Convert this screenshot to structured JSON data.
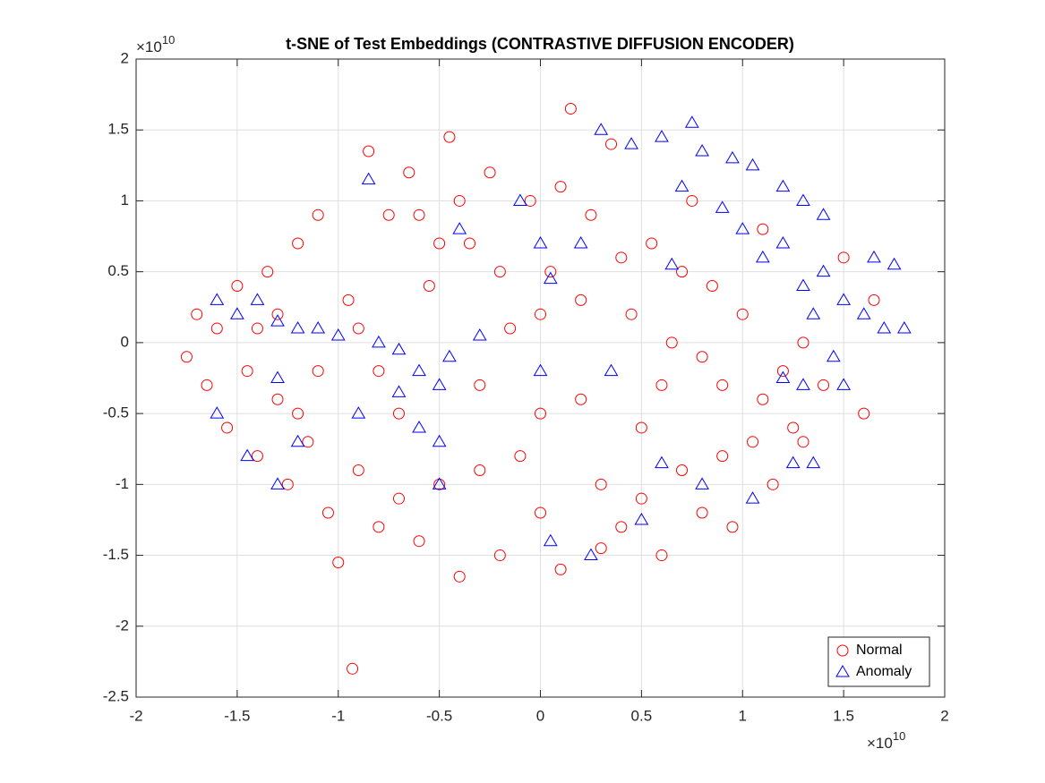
{
  "chart_data": {
    "type": "scatter",
    "title": "t-SNE of Test Embeddings (CONTRASTIVE DIFFUSION ENCODER)",
    "x_scale_base": "×10",
    "x_scale_exponent": "10",
    "y_scale_base": "×10",
    "y_scale_exponent": "10",
    "xlim": [
      -2,
      2
    ],
    "xticks": [
      -2,
      -1.5,
      -1,
      -0.5,
      0,
      0.5,
      1,
      1.5,
      2
    ],
    "ylim": [
      -2.5,
      2
    ],
    "yticks": [
      -2.5,
      -2,
      -1.5,
      -1,
      -0.5,
      0,
      0.5,
      1,
      1.5,
      2
    ],
    "grid": true,
    "legend": "lower right",
    "series": [
      {
        "name": "Normal",
        "color": "#ff0000",
        "marker": "circle",
        "x": [
          -1.75,
          -1.7,
          -1.65,
          -1.6,
          -1.55,
          -1.5,
          -1.45,
          -1.4,
          -1.35,
          -1.3,
          -1.25,
          -1.2,
          -1.15,
          -1.1,
          -1.05,
          -1.0,
          -0.93,
          -0.95,
          -0.9,
          -0.85,
          -0.8,
          -0.75,
          -0.7,
          -0.65,
          -0.6,
          -0.55,
          -0.5,
          -0.45,
          -0.4,
          -0.35,
          -0.3,
          -0.25,
          -0.2,
          -0.15,
          -0.1,
          -0.05,
          0,
          0.05,
          0.1,
          0.15,
          0.2,
          0.25,
          0.3,
          0.35,
          0.4,
          0.45,
          0.5,
          0.55,
          0.6,
          0.65,
          0.7,
          0.75,
          0.8,
          0.85,
          0.9,
          0.95,
          1.0,
          1.05,
          1.1,
          1.15,
          1.2,
          1.25,
          1.3,
          1.4,
          1.5,
          1.6,
          1.65,
          -1.3,
          -1.1,
          -0.6,
          -0.3,
          0.0,
          0.4,
          0.6,
          0.9,
          -0.9,
          -0.7,
          0.1,
          0.3,
          -1.4,
          -0.5,
          0.2,
          0.7,
          1.1,
          -0.2,
          -0.8,
          0.5,
          -1.2,
          0.8,
          -0.4,
          0.0,
          1.3
        ],
        "values": [
          -0.1,
          0.2,
          -0.3,
          0.1,
          -0.6,
          0.4,
          -0.2,
          -0.8,
          0.5,
          -0.4,
          -1.0,
          0.7,
          -0.7,
          0.9,
          -1.2,
          -1.55,
          -2.3,
          0.3,
          -0.9,
          1.35,
          -1.3,
          0.9,
          -0.5,
          1.2,
          -1.4,
          0.4,
          -1.0,
          1.45,
          -1.65,
          0.7,
          -0.3,
          1.2,
          -1.5,
          0.1,
          -0.8,
          1.0,
          -1.2,
          0.5,
          -1.6,
          1.65,
          -0.4,
          0.9,
          -1.0,
          1.4,
          -1.3,
          0.2,
          -0.6,
          0.7,
          -1.5,
          0.0,
          -0.9,
          1.0,
          -1.2,
          0.4,
          -0.3,
          -1.3,
          0.2,
          -0.7,
          0.8,
          -1.0,
          -0.2,
          -0.6,
          0.0,
          -0.3,
          0.6,
          -0.5,
          0.3,
          0.2,
          -0.2,
          0.9,
          -0.9,
          0.2,
          0.6,
          -0.3,
          -0.8,
          0.1,
          -1.1,
          1.1,
          -1.45,
          0.1,
          0.7,
          0.3,
          0.5,
          -0.4,
          0.5,
          -0.2,
          -1.1,
          -0.5,
          -0.1,
          1.0,
          -0.5,
          -0.7
        ]
      },
      {
        "name": "Anomaly",
        "color": "#0000ff",
        "marker": "triangle",
        "x": [
          0.3,
          0.45,
          0.6,
          0.75,
          0.8,
          0.95,
          1.05,
          1.2,
          1.3,
          1.4,
          0.7,
          0.9,
          1.0,
          1.1,
          1.2,
          1.3,
          1.4,
          1.5,
          1.6,
          1.7,
          1.8,
          1.65,
          1.75,
          1.35,
          1.45,
          1.5,
          1.3,
          1.2,
          1.25,
          1.35,
          0.65,
          0.2,
          0.05,
          -0.1,
          0.0,
          -0.85,
          -0.4,
          -1.6,
          -1.5,
          -1.4,
          -1.3,
          -1.2,
          -1.1,
          -1.0,
          -0.8,
          -0.7,
          -0.6,
          -0.5,
          -0.45,
          -0.3,
          -0.7,
          -1.3,
          -1.2,
          -1.45,
          -1.3,
          -1.6,
          -0.9,
          -0.6,
          -0.5,
          0.0,
          0.35,
          0.6,
          0.8,
          1.05,
          0.5,
          0.25,
          0.05,
          -0.5
        ],
        "values": [
          1.5,
          1.4,
          1.45,
          1.55,
          1.35,
          1.3,
          1.25,
          1.1,
          1.0,
          0.9,
          1.1,
          0.95,
          0.8,
          0.6,
          0.7,
          0.4,
          0.5,
          0.3,
          0.2,
          0.1,
          0.1,
          0.6,
          0.55,
          0.2,
          -0.1,
          -0.3,
          -0.3,
          -0.25,
          -0.85,
          -0.85,
          0.55,
          0.7,
          0.45,
          1.0,
          0.7,
          1.15,
          0.8,
          0.3,
          0.2,
          0.3,
          0.15,
          0.1,
          0.1,
          0.05,
          0.0,
          -0.05,
          -0.2,
          -0.3,
          -0.1,
          0.05,
          -0.35,
          -0.25,
          -0.7,
          -0.8,
          -1.0,
          -0.5,
          -0.5,
          -0.6,
          -0.7,
          -0.2,
          -0.2,
          -0.85,
          -1.0,
          -1.1,
          -1.25,
          -1.5,
          -1.4,
          -1.0
        ]
      }
    ]
  }
}
